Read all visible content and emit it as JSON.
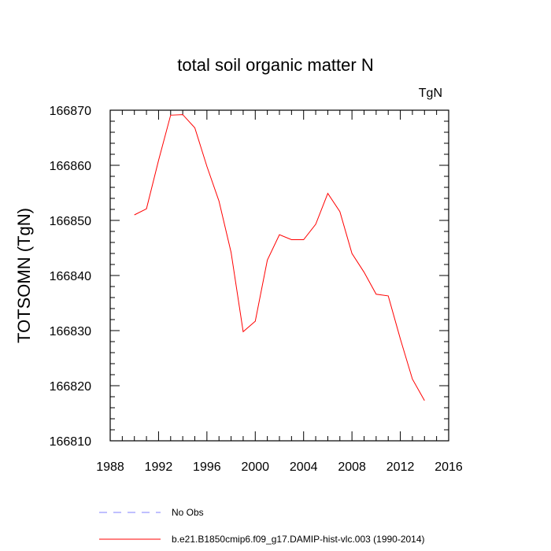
{
  "chart_data": {
    "type": "line",
    "title": "total soil organic matter N",
    "units": "TgN",
    "ylabel": "TOTSOMN  (TgN)",
    "xlabel": "",
    "xlim": [
      1988,
      2016
    ],
    "ylim": [
      166810,
      166870
    ],
    "xticks": [
      "1988",
      "1992",
      "1996",
      "2000",
      "2004",
      "2008",
      "2012",
      "2016"
    ],
    "yticks": [
      "166810",
      "166820",
      "166830",
      "166840",
      "166850",
      "166860",
      "166870"
    ],
    "grid": false,
    "legend_position": "bottom",
    "series": [
      {
        "name": "No Obs",
        "color": "#8080ff",
        "style": "dashed",
        "x": [],
        "y": []
      },
      {
        "name": "b.e21.B1850cmip6.f09_g17.DAMIP-hist-vlc.003 (1990-2014)",
        "color": "#ff0000",
        "style": "solid",
        "x": [
          1990,
          1991,
          1992,
          1993,
          1994,
          1995,
          1996,
          1997,
          1998,
          1999,
          2000,
          2001,
          2002,
          2003,
          2004,
          2005,
          2006,
          2007,
          2008,
          2009,
          2010,
          2011,
          2012,
          2013,
          2014
        ],
        "y": [
          166851.0,
          166852.1,
          166860.9,
          166869.1,
          166869.2,
          166866.8,
          166859.8,
          166853.5,
          166844.2,
          166829.8,
          166831.7,
          166842.8,
          166847.4,
          166846.5,
          166846.5,
          166849.3,
          166854.9,
          166851.6,
          166844.0,
          166840.6,
          166836.6,
          166836.3,
          166828.5,
          166821.2,
          166817.3
        ]
      }
    ]
  }
}
